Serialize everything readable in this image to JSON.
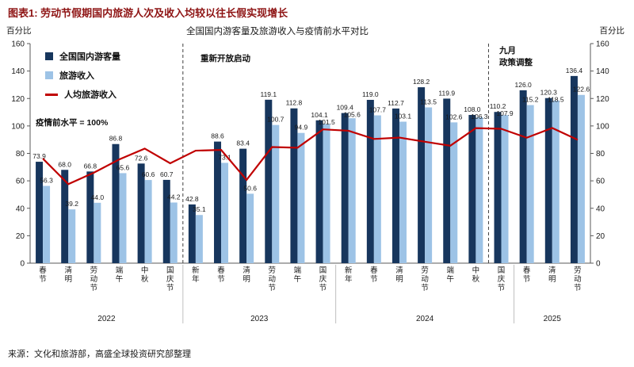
{
  "figure_title": "图表1: 劳动节假期国内旅游人次及收入均较以往长假实现增长",
  "axis_units": {
    "left": "百分比",
    "right": "百分比"
  },
  "annotations": {
    "baseline": "疫情前水平 = 100%",
    "reopening": "重新开放启动",
    "september_line1": "九月",
    "september_line2": "政策调整"
  },
  "source": "来源：文化和旅游部，高盛全球投资研究部整理",
  "colors": {
    "title": "#8E1414",
    "visitors_bar": "#17365D",
    "revenue_bar": "#9DC3E6",
    "per_capita_line": "#C00000",
    "axis": "#595959",
    "text": "#1a1a1a"
  },
  "chart_data": {
    "type": "bar+line",
    "title": "全国国内游客量及旅游收入与疫情前水平对比",
    "xlabel": "",
    "ylabel": "百分比",
    "ylim": [
      0,
      160
    ],
    "ytick_step": 20,
    "baseline_value": 100,
    "years": [
      {
        "year": "2022",
        "holidays": [
          "春节",
          "清明",
          "劳动节",
          "端午",
          "中秋",
          "国庆节"
        ]
      },
      {
        "year": "2023",
        "holidays": [
          "新年",
          "春节",
          "清明",
          "劳动节",
          "端午",
          "国庆节"
        ]
      },
      {
        "year": "2024",
        "holidays": [
          "新年",
          "春节",
          "清明",
          "劳动节",
          "端午",
          "中秋",
          "国庆节"
        ]
      },
      {
        "year": "2025",
        "holidays": [
          "春节",
          "清明",
          "劳动节"
        ]
      }
    ],
    "event_line_boundaries": [
      6,
      18
    ],
    "series": [
      {
        "name": "全国国内游客量",
        "type": "bar",
        "color": "#17365D",
        "values": [
          73.9,
          68.0,
          66.8,
          86.8,
          72.6,
          60.7,
          42.8,
          88.6,
          83.4,
          119.1,
          112.8,
          104.1,
          109.4,
          119.0,
          112.7,
          128.2,
          119.9,
          108.0,
          110.2,
          126.0,
          120.3,
          136.4
        ]
      },
      {
        "name": "旅游收入",
        "type": "bar",
        "color": "#9DC3E6",
        "values": [
          56.3,
          39.2,
          44.0,
          65.6,
          60.6,
          44.2,
          35.1,
          73.1,
          50.6,
          100.7,
          94.9,
          101.5,
          105.6,
          107.7,
          103.1,
          113.5,
          102.6,
          106.3,
          107.9,
          115.2,
          118.5,
          122.6
        ]
      },
      {
        "name": "人均旅游收入",
        "type": "line",
        "color": "#C00000",
        "values_estimated": true,
        "values": [
          76.2,
          57.6,
          65.9,
          75.6,
          83.5,
          72.8,
          82.0,
          82.5,
          60.7,
          84.6,
          84.1,
          97.5,
          96.5,
          90.5,
          91.5,
          88.5,
          85.6,
          98.4,
          97.9,
          91.4,
          98.5,
          89.9
        ]
      }
    ]
  }
}
